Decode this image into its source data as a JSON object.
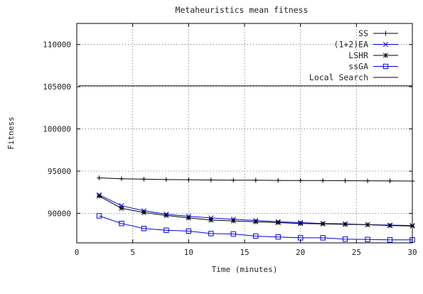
{
  "chart_data": {
    "type": "line",
    "title": "Metaheuristics mean fitness",
    "xlabel": "Time (minutes)",
    "ylabel": "Fitness",
    "xlim": [
      0,
      30
    ],
    "ylim": [
      86500,
      112500
    ],
    "xticks": [
      0,
      5,
      10,
      15,
      20,
      25,
      30
    ],
    "yticks": [
      90000,
      95000,
      100000,
      105000,
      110000
    ],
    "grid": true,
    "legend_position": "top-right",
    "series": [
      {
        "name": "SS",
        "color": "#000000",
        "marker": "plus",
        "x": [
          2,
          4,
          6,
          8,
          10,
          12,
          14,
          16,
          18,
          20,
          22,
          24,
          26,
          28,
          30
        ],
        "values": [
          94200,
          94100,
          94050,
          94000,
          93980,
          93950,
          93930,
          93920,
          93900,
          93890,
          93880,
          93860,
          93850,
          93840,
          93820
        ]
      },
      {
        "name": "(1+2)EA",
        "color": "#0000ee",
        "marker": "x",
        "x": [
          2,
          4,
          6,
          8,
          10,
          12,
          14,
          16,
          18,
          20,
          22,
          24,
          26,
          28,
          30
        ],
        "values": [
          92200,
          90900,
          90300,
          89900,
          89650,
          89450,
          89300,
          89150,
          89000,
          88900,
          88800,
          88750,
          88650,
          88600,
          88550
        ]
      },
      {
        "name": "LSHR",
        "color": "#000000",
        "marker": "star",
        "x": [
          2,
          4,
          6,
          8,
          10,
          12,
          14,
          16,
          18,
          20,
          22,
          24,
          26,
          28,
          30
        ],
        "values": [
          92050,
          90600,
          90100,
          89750,
          89450,
          89200,
          89100,
          89000,
          88900,
          88800,
          88750,
          88700,
          88650,
          88550,
          88500
        ]
      },
      {
        "name": "ssGA",
        "color": "#0000ee",
        "marker": "square",
        "x": [
          2,
          4,
          6,
          8,
          10,
          12,
          14,
          16,
          18,
          20,
          22,
          24,
          26,
          28,
          30
        ],
        "values": [
          89700,
          88800,
          88200,
          88000,
          87900,
          87600,
          87550,
          87300,
          87200,
          87100,
          87100,
          86950,
          86900,
          86850,
          86850
        ]
      },
      {
        "name": "Local Search",
        "color": "#000000",
        "marker": "none",
        "x": [
          0.2,
          30
        ],
        "values": [
          105100,
          105100
        ]
      }
    ]
  }
}
